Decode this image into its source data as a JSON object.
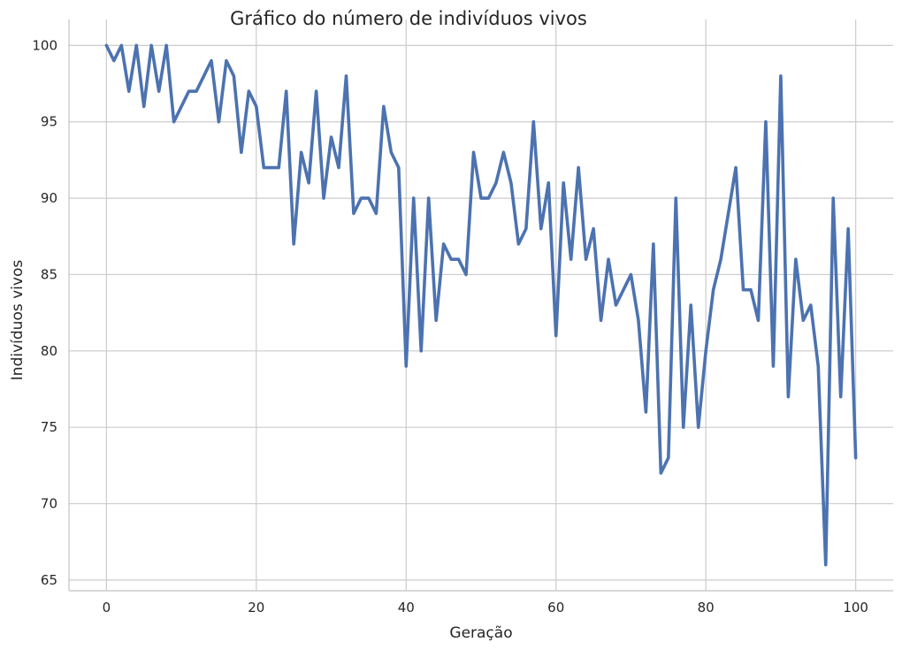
{
  "chart_data": {
    "type": "line",
    "title": "Gráfico do número de indivíduos vivos",
    "xlabel": "Geração",
    "ylabel": "Indivíduos vivos",
    "xlim": [
      -5,
      105
    ],
    "ylim": [
      64.3,
      101.7
    ],
    "xticks": [
      0,
      20,
      40,
      60,
      80,
      100
    ],
    "yticks": [
      65,
      70,
      75,
      80,
      85,
      90,
      95,
      100
    ],
    "grid": true,
    "line_color": "#4c72b0",
    "x": [
      0,
      1,
      2,
      3,
      4,
      5,
      6,
      7,
      8,
      9,
      10,
      11,
      12,
      13,
      14,
      15,
      16,
      17,
      18,
      19,
      20,
      21,
      22,
      23,
      24,
      25,
      26,
      27,
      28,
      29,
      30,
      31,
      32,
      33,
      34,
      35,
      36,
      37,
      38,
      39,
      40,
      41,
      42,
      43,
      44,
      45,
      46,
      47,
      48,
      49,
      50,
      51,
      52,
      53,
      54,
      55,
      56,
      57,
      58,
      59,
      60,
      61,
      62,
      63,
      64,
      65,
      66,
      67,
      68,
      69,
      70,
      71,
      72,
      73,
      74,
      75,
      76,
      77,
      78,
      79,
      80,
      81,
      82,
      83,
      84,
      85,
      86,
      87,
      88,
      89,
      90,
      91,
      92,
      93,
      94,
      95,
      96,
      97,
      98,
      99,
      100
    ],
    "y": [
      100,
      99,
      100,
      97,
      100,
      96,
      100,
      97,
      100,
      95,
      96,
      97,
      97,
      98,
      99,
      95,
      99,
      98,
      93,
      97,
      96,
      92,
      92,
      92,
      97,
      87,
      93,
      91,
      97,
      90,
      94,
      92,
      98,
      89,
      90,
      90,
      89,
      96,
      93,
      92,
      79,
      90,
      80,
      90,
      82,
      87,
      86,
      86,
      85,
      93,
      90,
      90,
      91,
      93,
      91,
      87,
      88,
      95,
      88,
      91,
      81,
      91,
      86,
      92,
      86,
      88,
      82,
      86,
      83,
      84,
      85,
      82,
      76,
      87,
      72,
      73,
      90,
      75,
      83,
      75,
      80,
      84,
      86,
      89,
      92,
      84,
      84,
      82,
      95,
      79,
      98,
      77,
      86,
      82,
      83,
      79,
      66,
      90,
      77,
      88,
      73
    ]
  }
}
